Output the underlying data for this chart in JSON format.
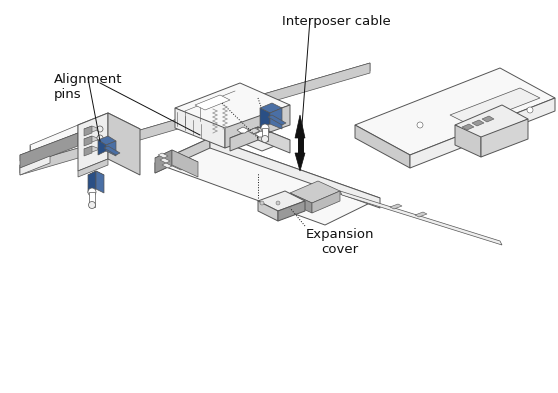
{
  "background_color": "#ffffff",
  "labels": {
    "interposer_cable": "Interposer cable",
    "alignment_pins": "Alignment\npins",
    "expansion_cover": "Expansion\ncover"
  },
  "line_color": "#555555",
  "blue_color": "#4a6fa5",
  "blue_dark": "#2a4f85",
  "light_gray": "#eeeeee",
  "mid_gray": "#cccccc",
  "dark_gray": "#999999",
  "very_light": "#f8f8f8",
  "white": "#ffffff",
  "black": "#111111",
  "fig_width": 5.58,
  "fig_height": 3.93,
  "dpi": 100
}
